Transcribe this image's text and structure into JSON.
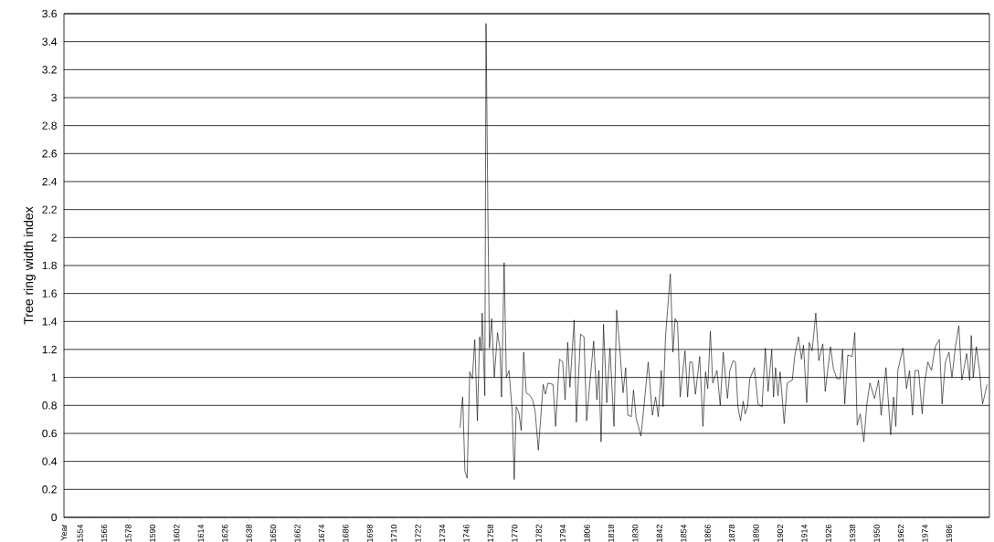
{
  "chart_data": {
    "type": "line",
    "ylabel": "Tree ring width index",
    "xlim": [
      1546,
      2006
    ],
    "xticks": [
      {
        "value": 1546,
        "label": "Year"
      },
      1554,
      1566,
      1578,
      1590,
      1602,
      1614,
      1626,
      1638,
      1650,
      1662,
      1674,
      1686,
      1698,
      1710,
      1722,
      1734,
      1746,
      1758,
      1770,
      1782,
      1794,
      1806,
      1818,
      1830,
      1842,
      1854,
      1866,
      1878,
      1890,
      1902,
      1914,
      1926,
      1938,
      1950,
      1962,
      1974,
      1986
    ],
    "ylim": [
      0,
      3.6
    ],
    "yticks": [
      0,
      0.2,
      0.4,
      0.6,
      0.8,
      1,
      1.2,
      1.4,
      1.6,
      1.8,
      2,
      2.2,
      2.4,
      2.6,
      2.8,
      3,
      3.2,
      3.4,
      3.6
    ],
    "grid": "y",
    "marker": "none",
    "line_style": "solid",
    "series": [
      {
        "color": "#000000",
        "x": [
          1742.9,
          1743.7,
          1744.2,
          1745.3,
          1746.4,
          1747.7,
          1749.0,
          1750.2,
          1751.5,
          1752.6,
          1753.4,
          1753.9,
          1754.5,
          1755.2,
          1755.8,
          1756.7,
          1757.5,
          1758.6,
          1759.9,
          1761.5,
          1762.7,
          1763.5,
          1764.8,
          1765.9,
          1767.2,
          1768.8,
          1769.8,
          1770.8,
          1772.1,
          1773.3,
          1774.5,
          1775.8,
          1777.7,
          1778.9,
          1780.2,
          1781.8,
          1784.2,
          1785.3,
          1786.6,
          1789.1,
          1790.4,
          1792.3,
          1793.9,
          1795.1,
          1796.4,
          1797.5,
          1799.6,
          1800.7,
          1802.8,
          1804.5,
          1805.8,
          1807.2,
          1809.3,
          1810.9,
          1811.9,
          1813.0,
          1814.2,
          1815.8,
          1817.4,
          1819.4,
          1820.7,
          1822.3,
          1823.9,
          1825.2,
          1826.3,
          1828.0,
          1829.1,
          1830.4,
          1832.8,
          1834.4,
          1836.4,
          1838.5,
          1840.1,
          1841.4,
          1842.9,
          1843.8,
          1845.0,
          1847.4,
          1848.7,
          1849.8,
          1851.0,
          1852.3,
          1854.7,
          1856.0,
          1857.1,
          1858.3,
          1859.9,
          1862.0,
          1863.6,
          1864.9,
          1866.0,
          1867.3,
          1868.5,
          1870.6,
          1872.2,
          1873.7,
          1875.8,
          1877.0,
          1878.6,
          1879.8,
          1881.0,
          1882.3,
          1883.6,
          1884.6,
          1885.8,
          1886.9,
          1889.2,
          1891.0,
          1893.0,
          1894.6,
          1896.0,
          1897.8,
          1898.7,
          1899.7,
          1900.9,
          1902.0,
          1904.0,
          1905.5,
          1908.0,
          1909.3,
          1911.1,
          1912.6,
          1913.6,
          1915.2,
          1916.4,
          1917.9,
          1919.7,
          1921.2,
          1923.2,
          1924.4,
          1927.0,
          1928.5,
          1930.3,
          1931.8,
          1933.0,
          1934.1,
          1935.6,
          1937.8,
          1939.1,
          1940.3,
          1941.8,
          1943.6,
          1945.1,
          1946.6,
          1948.9,
          1950.9,
          1952.2,
          1954.6,
          1956.9,
          1958.4,
          1959.5,
          1960.5,
          1963.0,
          1964.8,
          1966.3,
          1967.8,
          1969.0,
          1970.8,
          1972.6,
          1973.8,
          1975.4,
          1977.2,
          1979.1,
          1981.1,
          1982.5,
          1984.1,
          1985.9,
          1987.4,
          1989.0,
          1990.8,
          1992.3,
          1994.7,
          1996.2,
          1997.0,
          1998.0,
          1999.5,
          2001.0,
          2002.6,
          2003.6,
          2004.8
        ],
        "values": [
          0.64,
          0.79,
          0.86,
          0.33,
          0.28,
          1.04,
          0.99,
          1.27,
          0.69,
          1.29,
          1.19,
          1.46,
          1.18,
          0.87,
          3.53,
          2.2,
          1.21,
          1.42,
          1.0,
          1.32,
          1.21,
          0.86,
          1.82,
          1.0,
          1.05,
          0.76,
          0.27,
          0.79,
          0.75,
          0.62,
          1.18,
          0.89,
          0.87,
          0.84,
          0.76,
          0.48,
          0.95,
          0.88,
          0.96,
          0.95,
          0.65,
          1.13,
          1.11,
          0.84,
          1.25,
          0.93,
          1.41,
          0.68,
          1.31,
          1.29,
          0.69,
          0.93,
          1.26,
          0.84,
          1.05,
          0.54,
          1.38,
          0.82,
          1.21,
          0.65,
          1.48,
          1.2,
          0.89,
          1.07,
          0.73,
          0.72,
          0.91,
          0.71,
          0.58,
          0.81,
          1.11,
          0.73,
          0.86,
          0.72,
          1.05,
          0.79,
          1.29,
          1.74,
          1.18,
          1.42,
          1.39,
          0.86,
          1.19,
          0.86,
          1.11,
          1.11,
          0.88,
          1.15,
          0.65,
          1.04,
          0.92,
          1.33,
          0.96,
          1.05,
          0.8,
          1.18,
          0.85,
          1.05,
          1.12,
          1.11,
          0.79,
          0.69,
          0.83,
          0.74,
          0.79,
          0.99,
          1.07,
          0.81,
          0.79,
          1.21,
          0.9,
          1.2,
          0.86,
          1.07,
          0.87,
          1.04,
          0.67,
          0.96,
          0.98,
          1.16,
          1.29,
          1.13,
          1.23,
          0.82,
          1.25,
          1.19,
          1.46,
          1.12,
          1.24,
          0.9,
          1.22,
          1.06,
          0.99,
          0.99,
          1.2,
          0.81,
          1.16,
          1.15,
          1.32,
          0.66,
          0.74,
          0.54,
          0.81,
          0.96,
          0.85,
          0.98,
          0.73,
          1.07,
          0.59,
          0.86,
          0.65,
          1.05,
          1.21,
          0.92,
          1.05,
          0.73,
          1.05,
          1.05,
          0.74,
          0.96,
          1.11,
          1.05,
          1.22,
          1.27,
          0.81,
          1.11,
          1.18,
          1.0,
          1.21,
          1.37,
          0.98,
          1.17,
          0.98,
          1.3,
          1.0,
          1.22,
          1.06,
          0.81,
          0.87,
          0.95
        ]
      }
    ]
  }
}
